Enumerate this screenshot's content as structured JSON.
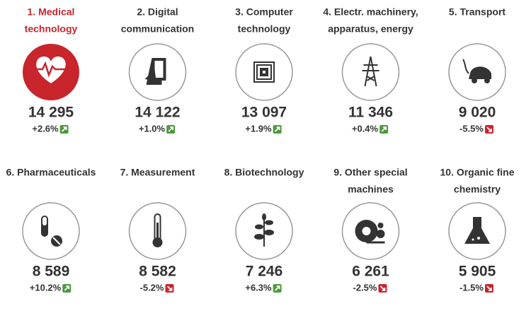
{
  "items": [
    {
      "label": [
        "1. Medical",
        "technology"
      ],
      "value": "14 295",
      "change": "+2.6%",
      "direction": "up",
      "highlight": true
    },
    {
      "label": [
        "2. Digital",
        "communication"
      ],
      "value": "14 122",
      "change": "+1.0%",
      "direction": "up"
    },
    {
      "label": [
        "3. Computer",
        "technology"
      ],
      "value": "13 097",
      "change": "+1.9%",
      "direction": "up"
    },
    {
      "label": [
        "4. Electr. machinery,",
        "apparatus, energy"
      ],
      "value": "11 346",
      "change": "+0.4%",
      "direction": "up"
    },
    {
      "label": [
        "5. Transport"
      ],
      "value": "9 020",
      "change": "-5.5%",
      "direction": "down"
    },
    {
      "label": [
        "6. Pharmaceuticals"
      ],
      "value": "8 589",
      "change": "+10.2%",
      "direction": "up"
    },
    {
      "label": [
        "7. Measurement"
      ],
      "value": "8 582",
      "change": "-5.2%",
      "direction": "down"
    },
    {
      "label": [
        "8. Biotechnology"
      ],
      "value": "7 246",
      "change": "+6.3%",
      "direction": "up"
    },
    {
      "label": [
        "9. Other special",
        "machines"
      ],
      "value": "6 261",
      "change": "-2.5%",
      "direction": "down"
    },
    {
      "label": [
        "10. Organic fine",
        "chemistry"
      ],
      "value": "5 905",
      "change": "-1.5%",
      "direction": "down"
    }
  ]
}
